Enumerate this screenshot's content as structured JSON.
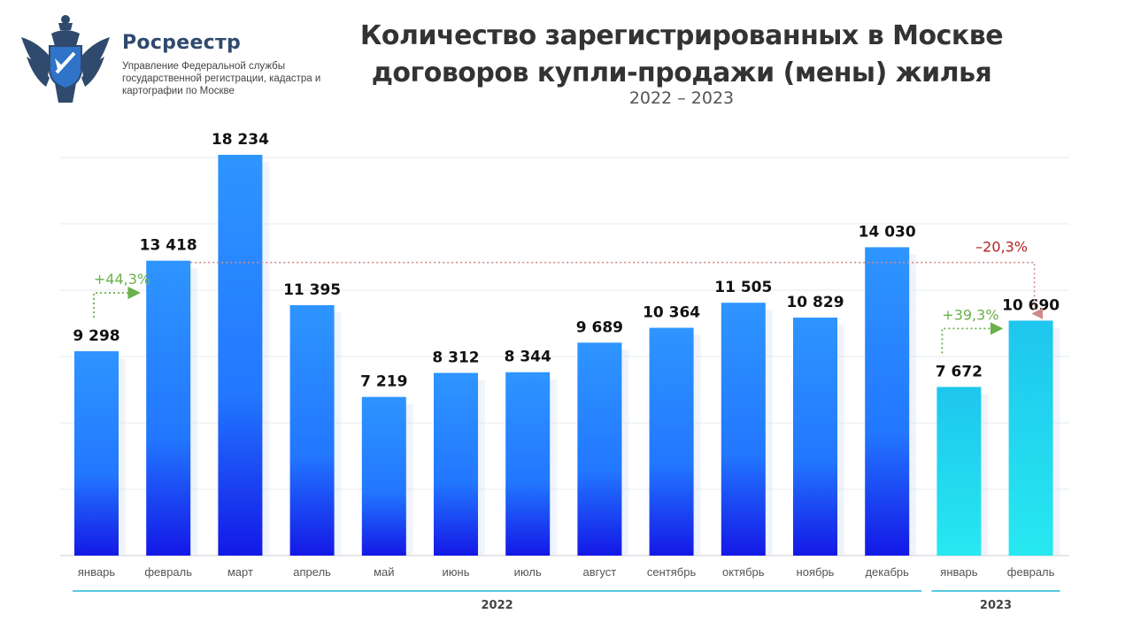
{
  "header": {
    "org_name": "Росреестр",
    "org_subtitle": "Управление Федеральной службы государственной регистрации, кадастра и картографии по Москве",
    "logo_icon": "double-headed-eagle-emblem"
  },
  "chart_data": {
    "type": "bar",
    "title": "Количество зарегистрированных в Москве договоров купли-продажи (мены) жилья",
    "subtitle": "2022 – 2023",
    "xlabel": "",
    "ylabel": "",
    "ylim": [
      0,
      18234
    ],
    "grid": true,
    "categories": [
      "январь",
      "февраль",
      "март",
      "апрель",
      "май",
      "июнь",
      "июль",
      "август",
      "сентябрь",
      "октябрь",
      "ноябрь",
      "декабрь",
      "январь",
      "февраль"
    ],
    "values": [
      9298,
      13418,
      18234,
      11395,
      7219,
      8312,
      8344,
      9689,
      10364,
      11505,
      10829,
      14030,
      7672,
      10690
    ],
    "value_labels": [
      "9 298",
      "13 418",
      "18 234",
      "11 395",
      "7 219",
      "8 312",
      "8 344",
      "9 689",
      "10 364",
      "11 505",
      "10 829",
      "14 030",
      "7 672",
      "10 690"
    ],
    "year_groups": [
      {
        "label": "2022",
        "from": 0,
        "to": 11,
        "color": "#1565ff"
      },
      {
        "label": "2023",
        "from": 12,
        "to": 13,
        "color": "#22c8ea"
      }
    ],
    "annotations": [
      {
        "text": "+44,3%",
        "from": 0,
        "to": 1,
        "color": "#6ab04c"
      },
      {
        "text": "–20,3%",
        "from": 1,
        "to": 13,
        "color": "#b22222"
      },
      {
        "text": "+39,3%",
        "from": 12,
        "to": 13,
        "color": "#6ab04c"
      }
    ]
  }
}
